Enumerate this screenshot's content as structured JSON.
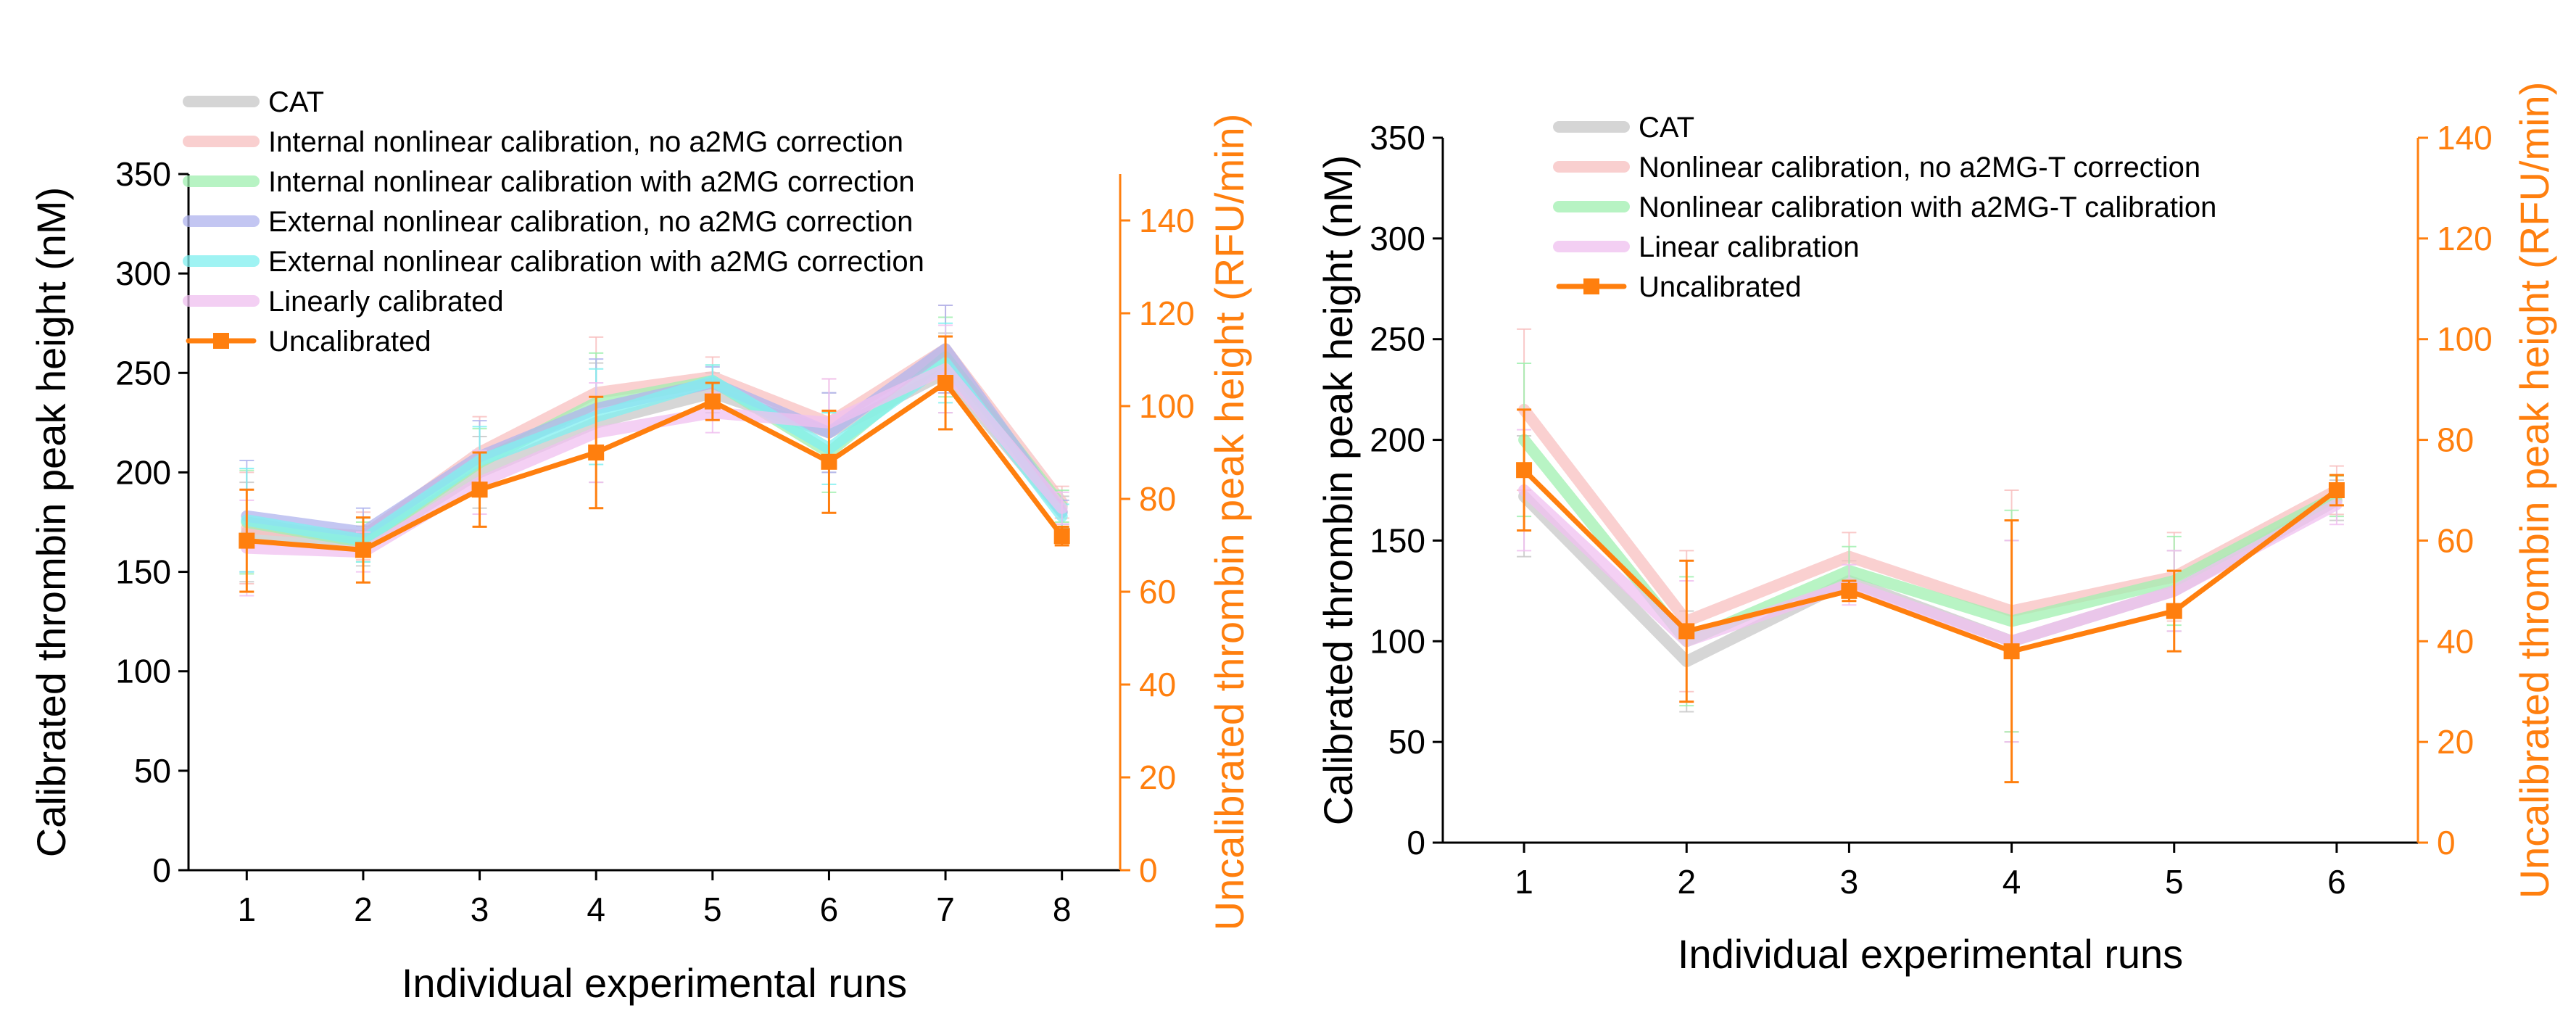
{
  "chart_data": [
    {
      "type": "line",
      "x": [
        1,
        2,
        3,
        4,
        5,
        6,
        7,
        8
      ],
      "xlabel": "Individual experimental runs",
      "ylabel": "Calibrated thrombin peak height (nM)",
      "ylabel_right": "Uncalibrated thrombin peak height (RFU/min)",
      "ylim": [
        0,
        350
      ],
      "yticks": [
        0,
        50,
        100,
        150,
        200,
        250,
        300,
        350
      ],
      "ylim_right": [
        0,
        150
      ],
      "yticks_right": [
        0,
        20,
        40,
        60,
        80,
        100,
        120,
        140
      ],
      "grid": false,
      "legend_position": "top-left",
      "series": [
        {
          "name": "CAT",
          "axis": "left",
          "color": "#c8c8c8",
          "values": [
            170,
            163,
            200,
            225,
            240,
            220,
            250,
            180
          ],
          "err": [
            25,
            10,
            18,
            30,
            10,
            20,
            20,
            8
          ]
        },
        {
          "name": "Internal nonlinear calibration, no a2MG correction",
          "axis": "left",
          "color": "#f8c0c0",
          "values": [
            172,
            168,
            210,
            240,
            248,
            225,
            262,
            185
          ],
          "err": [
            28,
            12,
            18,
            28,
            10,
            22,
            22,
            8
          ]
        },
        {
          "name": "Internal nonlinear calibration with a2MG correction",
          "axis": "left",
          "color": "#a0f0b0",
          "values": [
            175,
            165,
            205,
            235,
            246,
            210,
            258,
            183
          ],
          "err": [
            26,
            10,
            17,
            25,
            8,
            20,
            20,
            8
          ]
        },
        {
          "name": "External nonlinear calibration, no a2MG correction",
          "axis": "left",
          "color": "#b0b4ee",
          "values": [
            178,
            170,
            208,
            232,
            245,
            220,
            262,
            180
          ],
          "err": [
            28,
            12,
            18,
            25,
            8,
            20,
            22,
            6
          ]
        },
        {
          "name": "External nonlinear calibration with a2MG correction",
          "axis": "left",
          "color": "#80f0f0",
          "values": [
            176,
            166,
            206,
            228,
            246,
            212,
            255,
            178
          ],
          "err": [
            26,
            11,
            17,
            24,
            8,
            18,
            20,
            6
          ]
        },
        {
          "name": "Linearly calibrated",
          "axis": "left",
          "color": "#f0c0f0",
          "values": [
            162,
            160,
            195,
            220,
            230,
            225,
            252,
            182
          ],
          "err": [
            24,
            10,
            16,
            25,
            10,
            22,
            22,
            8
          ]
        },
        {
          "name": "Uncalibrated",
          "axis": "right",
          "color": "#ff7f0e",
          "marker": "square",
          "values": [
            71,
            69,
            82,
            90,
            101,
            88,
            105,
            72
          ],
          "err": [
            11,
            7,
            8,
            12,
            4,
            11,
            10,
            2
          ]
        }
      ]
    },
    {
      "type": "line",
      "x": [
        1,
        2,
        3,
        4,
        5,
        6
      ],
      "xlabel": "Individual experimental runs",
      "ylabel": "Calibrated thrombin peak height (nM)",
      "ylabel_right": "Uncalibrated thrombin peak height (RFU/min)",
      "ylim": [
        0,
        350
      ],
      "yticks": [
        0,
        50,
        100,
        150,
        200,
        250,
        300,
        350
      ],
      "ylim_right": [
        0,
        140
      ],
      "yticks_right": [
        0,
        20,
        40,
        60,
        80,
        100,
        120,
        140
      ],
      "grid": false,
      "legend_position": "top-left",
      "series": [
        {
          "name": "CAT",
          "axis": "left",
          "color": "#c8c8c8",
          "values": [
            172,
            90,
            130,
            100,
            125,
            170
          ],
          "err": [
            30,
            25,
            10,
            50,
            20,
            10
          ]
        },
        {
          "name": "Nonlinear calibration, no a2MG-T correction",
          "axis": "left",
          "color": "#f8c0c0",
          "values": [
            215,
            110,
            142,
            115,
            132,
            175
          ],
          "err": [
            40,
            35,
            12,
            60,
            22,
            12
          ]
        },
        {
          "name": "Nonlinear calibration with a2MG-T calibration",
          "axis": "left",
          "color": "#a0f0b0",
          "values": [
            200,
            100,
            135,
            110,
            130,
            172
          ],
          "err": [
            38,
            32,
            12,
            55,
            22,
            10
          ]
        },
        {
          "name": "Linear calibration",
          "axis": "left",
          "color": "#f0c0f0",
          "values": [
            175,
            100,
            128,
            100,
            125,
            168
          ],
          "err": [
            30,
            30,
            10,
            50,
            20,
            10
          ]
        },
        {
          "name": "Uncalibrated",
          "axis": "right",
          "color": "#ff7f0e",
          "marker": "square",
          "values": [
            74,
            42,
            50,
            38,
            46,
            70
          ],
          "err": [
            12,
            14,
            2,
            26,
            8,
            3
          ]
        }
      ]
    }
  ]
}
